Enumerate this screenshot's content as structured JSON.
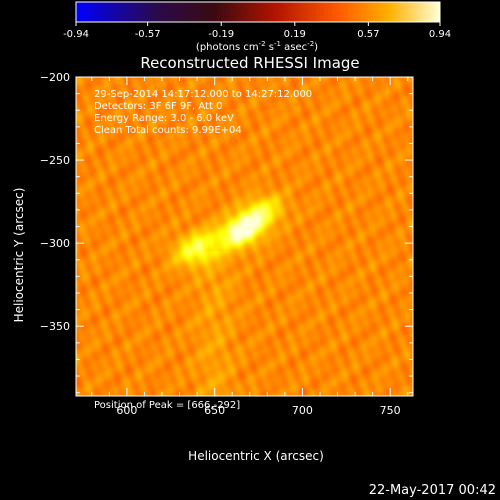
{
  "chart_data": {
    "type": "heatmap",
    "title": "Reconstructed RHESSI Image",
    "xlabel": "Heliocentric X (arcsec)",
    "ylabel": "Heliocentric Y (arcsec)",
    "xlim": [
      571,
      763
    ],
    "ylim": [
      -392,
      -200
    ],
    "x_ticks": [
      600,
      650,
      700,
      750
    ],
    "y_ticks": [
      -200,
      -250,
      -300,
      -350
    ],
    "colorbar": {
      "colormap": "hot",
      "min": -0.94,
      "max": 0.94,
      "ticks": [
        "-0.94",
        "-0.57",
        "-0.19",
        "0.19",
        "0.57",
        "0.94"
      ],
      "label_parts": [
        "(photons cm",
        "-2",
        " s",
        "-1",
        " asec",
        "-2",
        ")"
      ]
    },
    "info_lines": [
      "29-Sep-2014 14:17:12.000 to 14:27:12.000",
      "Detectors: 3F 6F 9F, Att 0",
      "Energy Range: 3.0 - 6.0 keV",
      "Clean    Total counts: 9.99E+04"
    ],
    "peak_text": "Position of Peak = [666,-292]",
    "peak": {
      "x": 666,
      "y": -292
    },
    "sources": [
      {
        "x": 665,
        "y": -293,
        "value": 0.94
      },
      {
        "x": 640,
        "y": -303,
        "value": 0.72
      },
      {
        "x": 676,
        "y": -282,
        "value": 0.65
      }
    ]
  },
  "timestamp": "22-May-2017 00:42"
}
